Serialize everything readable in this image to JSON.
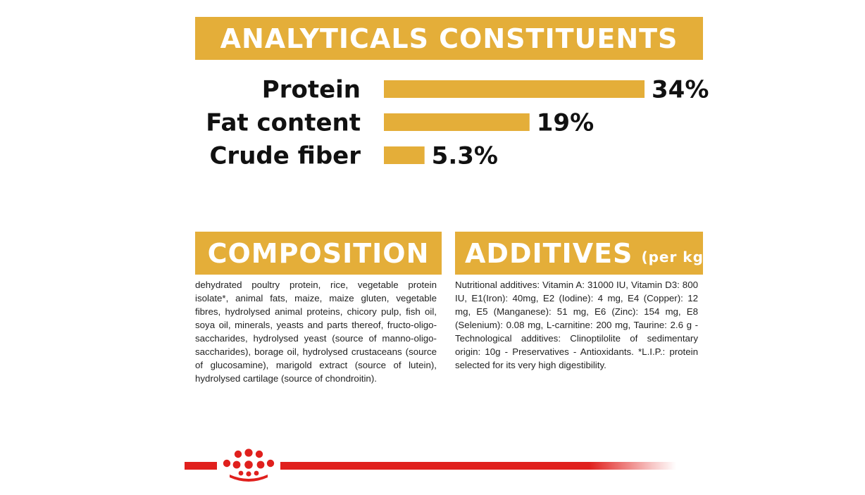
{
  "analytics": {
    "title": "ANALYTICALS CONSTITUENTS"
  },
  "chart_data": {
    "type": "bar",
    "orientation": "horizontal",
    "title": "ANALYTICALS CONSTITUENTS",
    "categories": [
      "Protein",
      "Fat content",
      "Crude fiber"
    ],
    "values": [
      34,
      19,
      5.3
    ],
    "data_labels": [
      "34%",
      "19%",
      "5.3%"
    ],
    "xlabel": "",
    "ylabel": "",
    "grid": false,
    "bar_color": "#e4ae39"
  },
  "composition": {
    "title": "COMPOSITION",
    "text": "dehydrated poultry protein, rice, vegetable protein isolate*, animal fats, maize, maize gluten, vegetable fibres, hydrolysed animal proteins, chicory pulp, fish oil, soya oil, minerals, yeasts and parts thereof, fructo-oligo-saccharides, hydrolysed yeast (source of manno-oligo-saccharides), borage oil, hydrolysed crustaceans (source of glucosamine), marigold extract (source of lutein), hydrolysed cartilage (source of chondroitin)."
  },
  "additives": {
    "title": "ADDITIVES",
    "title_suffix": "(per kg)",
    "text": "Nutritional additives: Vitamin A: 31000 IU, Vitamin D3: 800 IU, E1(Iron): 40mg, E2 (Iodine): 4 mg, E4 (Copper): 12 mg, E5 (Manganese): 51 mg, E6 (Zinc): 154 mg, E8 (Selenium): 0.08 mg, L-carnitine: 200 mg, Taurine: 2.6 g - Technological additives: Clinoptilolite of sedimentary origin: 10g - Preservatives - Antioxidants. *L.I.P.: protein selected for its very high digestibility."
  },
  "colors": {
    "accent": "#e4ae39",
    "brand_red": "#e0201d",
    "text": "#111111"
  },
  "footer": {
    "logo_icon": "crown-logo-icon"
  }
}
